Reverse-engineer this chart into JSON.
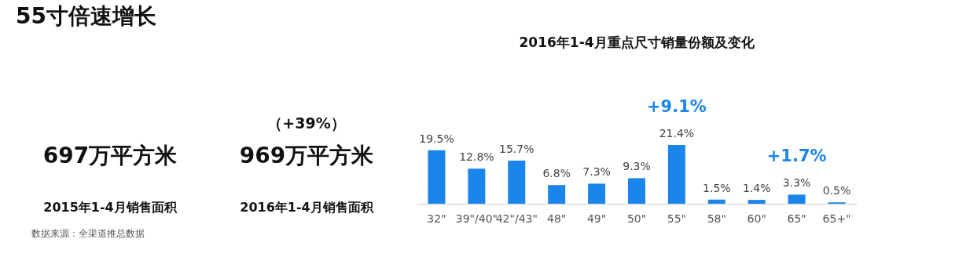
{
  "chart_data": {
    "type": "bar",
    "title": "55寸倍速增长",
    "subtitle": "2016年1-4月重点尺寸销量份额及变化",
    "categories": [
      "32\"",
      "39\"/40\"",
      "42\"/43\"",
      "48\"",
      "49\"",
      "50\"",
      "55\"",
      "58\"",
      "60\"",
      "65\"",
      "65+\""
    ],
    "values": [
      19.5,
      12.8,
      15.7,
      6.8,
      7.3,
      9.3,
      21.4,
      1.5,
      1.4,
      3.3,
      0.5
    ],
    "value_labels": [
      "19.5%",
      "12.8%",
      "15.7%",
      "6.8%",
      "7.3%",
      "9.3%",
      "21.4%",
      "1.5%",
      "1.4%",
      "3.3%",
      "0.5%"
    ],
    "color": "#1a85eb",
    "annotations": [
      {
        "text": "+9.1%",
        "x": "55\"",
        "y": 21.4
      },
      {
        "text": "+1.7%",
        "x": "65\"",
        "y": 3.3
      },
      "697万平方米",
      "2015年1-4月销售面积",
      "（+39%）",
      "969万平方米",
      "2016年1-4月销售面积",
      "数据来源：全渠道推总数据"
    ],
    "grid": false
  }
}
